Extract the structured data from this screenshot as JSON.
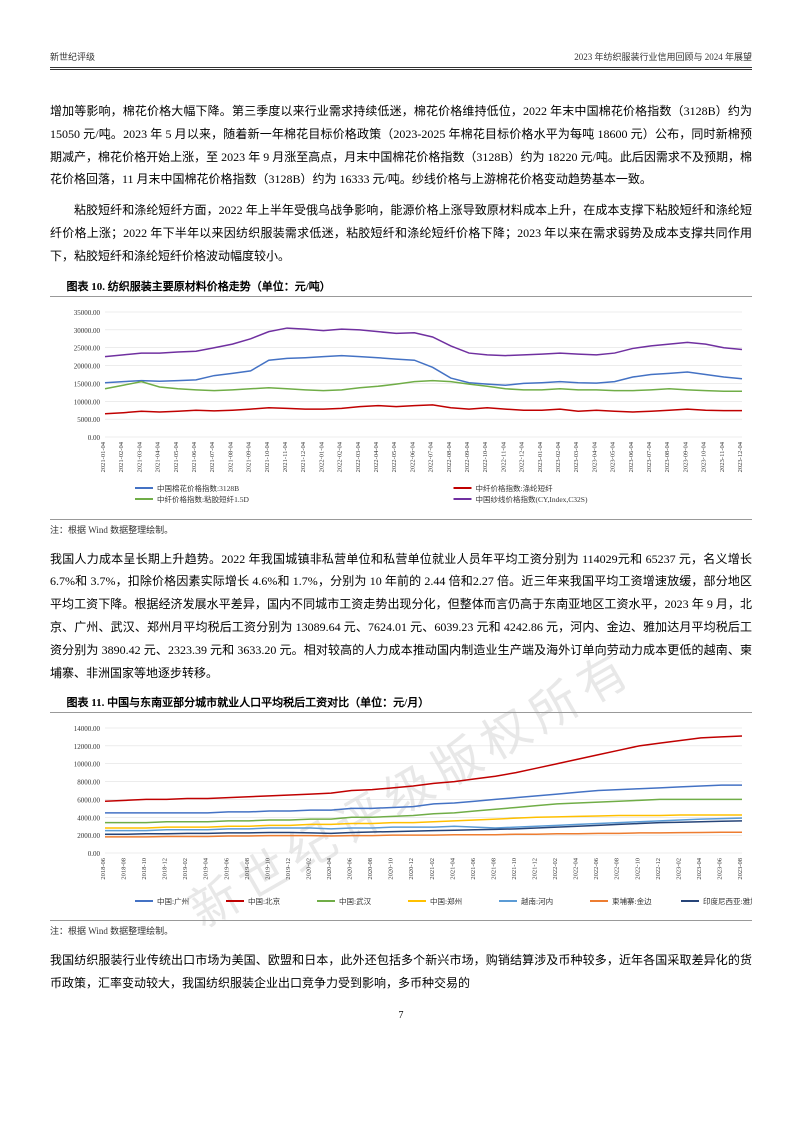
{
  "header": {
    "left": "新世纪评级",
    "right": "2023 年纺织服装行业信用回顾与 2024 年展望"
  },
  "paragraphs": {
    "p1": "增加等影响，棉花价格大幅下降。第三季度以来行业需求持续低迷，棉花价格维持低位，2022 年末中国棉花价格指数（3128B）约为 15050 元/吨。2023 年 5 月以来，随着新一年棉花目标价格政策（2023-2025 年棉花目标价格水平为每吨 18600 元）公布，同时新棉预期减产，棉花价格开始上涨，至 2023 年 9 月涨至高点，月末中国棉花价格指数（3128B）约为 18220 元/吨。此后因需求不及预期，棉花价格回落，11 月末中国棉花价格指数（3128B）约为 16333 元/吨。纱线价格与上游棉花价格变动趋势基本一致。",
    "p2": "粘胶短纤和涤纶短纤方面，2022 年上半年受俄乌战争影响，能源价格上涨导致原材料成本上升，在成本支撑下粘胶短纤和涤纶短纤价格上涨；2022 年下半年以来因纺织服装需求低迷，粘胶短纤和涤纶短纤价格下降；2023 年以来在需求弱势及成本支撑共同作用下，粘胶短纤和涤纶短纤价格波动幅度较小。",
    "p3": "我国人力成本呈长期上升趋势。2022 年我国城镇非私营单位和私营单位就业人员年平均工资分别为 114029元和 65237 元，名义增长 6.7%和 3.7%，扣除价格因素实际增长 4.6%和 1.7%，分别为 10 年前的 2.44 倍和2.27 倍。近三年来我国平均工资增速放缓，部分地区平均工资下降。根据经济发展水平差异，国内不同城市工资走势出现分化，但整体而言仍高于东南亚地区工资水平，2023 年 9 月，北京、广州、武汉、郑州月平均税后工资分别为 13089.64 元、7624.01 元、6039.23 元和 4242.86 元，河内、金边、雅加达月平均税后工资分别为 3890.42 元、2323.39 元和 3633.20 元。相对较高的人力成本推动国内制造业生产端及海外订单向劳动力成本更低的越南、柬埔寨、非洲国家等地逐步转移。",
    "p4": "我国纺织服装行业传统出口市场为美国、欧盟和日本，此外还包括多个新兴市场，购销结算涉及币种较多，近年各国采取差异化的货币政策，汇率变动较大，我国纺织服装企业出口竞争力受到影响，多币种交易的"
  },
  "chart10": {
    "title": "图表 10. 纺织服装主要原材料价格走势（单位：元/吨）",
    "note": "注：根据 Wind 数据整理绘制。",
    "ylim": [
      0,
      35000
    ],
    "ytick_step": 5000,
    "ylabels": [
      "0.00",
      "5000.00",
      "10000.00",
      "15000.00",
      "20000.00",
      "25000.00",
      "30000.00",
      "35000.00"
    ],
    "xlabels": [
      "2021-01-04",
      "2021-02-04",
      "2021-03-04",
      "2021-04-04",
      "2021-05-04",
      "2021-06-04",
      "2021-07-04",
      "2021-08-04",
      "2021-09-04",
      "2021-10-04",
      "2021-11-04",
      "2021-12-04",
      "2022-01-04",
      "2022-02-04",
      "2022-03-04",
      "2022-04-04",
      "2022-05-04",
      "2022-06-04",
      "2022-07-04",
      "2022-08-04",
      "2022-09-04",
      "2022-10-04",
      "2022-11-04",
      "2022-12-04",
      "2023-01-04",
      "2023-02-04",
      "2023-03-04",
      "2023-04-04",
      "2023-05-04",
      "2023-06-04",
      "2023-07-04",
      "2023-08-04",
      "2023-09-04",
      "2023-10-04",
      "2023-11-04",
      "2023-12-04"
    ],
    "series": {
      "cotton": {
        "label": "中国棉花价格指数:3128B",
        "color": "#4472c4",
        "values": [
          15200,
          15500,
          15800,
          15600,
          15800,
          16000,
          17200,
          17800,
          18500,
          21500,
          22000,
          22200,
          22500,
          22800,
          22500,
          22200,
          21800,
          21500,
          19500,
          16500,
          15200,
          14800,
          14500,
          15000,
          15200,
          15500,
          15200,
          15100,
          15500,
          16800,
          17500,
          17800,
          18200,
          17500,
          16800,
          16300
        ]
      },
      "polyester": {
        "label": "中纤价格指数:涤纶短纤",
        "color": "#c00000",
        "values": [
          6500,
          6800,
          7200,
          7000,
          7200,
          7500,
          7300,
          7500,
          7800,
          8200,
          8000,
          7800,
          7800,
          8000,
          8500,
          8800,
          8500,
          8800,
          9000,
          8200,
          7800,
          8200,
          7800,
          7500,
          7500,
          7800,
          7200,
          7500,
          7200,
          7000,
          7200,
          7500,
          7800,
          7500,
          7400,
          7400
        ]
      },
      "viscose": {
        "label": "中纤价格指数:粘胶短纤1.5D",
        "color": "#70ad47",
        "values": [
          13500,
          14500,
          15500,
          14000,
          13500,
          13200,
          13000,
          13200,
          13500,
          13800,
          13500,
          13200,
          13000,
          13200,
          13800,
          14200,
          14800,
          15500,
          15800,
          15500,
          14800,
          14200,
          13500,
          13200,
          13200,
          13500,
          13200,
          13200,
          13000,
          13000,
          13200,
          13500,
          13200,
          13000,
          12800,
          12800
        ]
      },
      "yarn": {
        "label": "中国纱线价格指数(CY,Index,C32S)",
        "color": "#7030a0",
        "values": [
          22500,
          23000,
          23500,
          23500,
          23800,
          24000,
          25000,
          26000,
          27500,
          29500,
          30500,
          30200,
          29800,
          30200,
          30000,
          29500,
          29000,
          29200,
          28000,
          25500,
          23500,
          23000,
          22800,
          23000,
          23200,
          23500,
          23200,
          23000,
          23500,
          24800,
          25500,
          26000,
          26500,
          26000,
          25000,
          24500
        ]
      }
    }
  },
  "chart11": {
    "title": "图表 11. 中国与东南亚部分城市就业人口平均税后工资对比（单位：元/月）",
    "note": "注：根据 Wind 数据整理绘制。",
    "ylim": [
      0,
      14000
    ],
    "ytick_step": 2000,
    "ylabels": [
      "0.00",
      "2000.00",
      "4000.00",
      "6000.00",
      "8000.00",
      "10000.00",
      "12000.00",
      "14000.00"
    ],
    "xlabels": [
      "2018-06",
      "2018-08",
      "2018-10",
      "2018-12",
      "2019-02",
      "2019-04",
      "2019-06",
      "2019-08",
      "2019-10",
      "2019-12",
      "2020-02",
      "2020-04",
      "2020-06",
      "2020-08",
      "2020-10",
      "2020-12",
      "2021-02",
      "2021-04",
      "2021-06",
      "2021-08",
      "2021-10",
      "2021-12",
      "2022-02",
      "2022-04",
      "2022-06",
      "2022-08",
      "2022-10",
      "2022-12",
      "2023-02",
      "2023-04",
      "2023-06",
      "2023-08"
    ],
    "series": {
      "guangzhou": {
        "label": "中国:广州",
        "color": "#4472c4",
        "values": [
          4500,
          4500,
          4500,
          4500,
          4500,
          4500,
          4600,
          4600,
          4700,
          4700,
          4800,
          4800,
          5000,
          5000,
          5100,
          5200,
          5500,
          5600,
          5800,
          6000,
          6200,
          6400,
          6600,
          6800,
          7000,
          7100,
          7200,
          7300,
          7400,
          7500,
          7600,
          7600
        ]
      },
      "beijing": {
        "label": "中国:北京",
        "color": "#c00000",
        "values": [
          5800,
          5900,
          6000,
          6000,
          6100,
          6100,
          6200,
          6300,
          6400,
          6500,
          6600,
          6700,
          7000,
          7100,
          7300,
          7500,
          7800,
          8000,
          8300,
          8600,
          9000,
          9500,
          10000,
          10500,
          11000,
          11500,
          12000,
          12300,
          12600,
          12900,
          13000,
          13100
        ]
      },
      "wuhan": {
        "label": "中国:武汉",
        "color": "#70ad47",
        "values": [
          3400,
          3400,
          3400,
          3500,
          3500,
          3500,
          3600,
          3600,
          3700,
          3700,
          3800,
          3800,
          4000,
          4000,
          4100,
          4200,
          4400,
          4500,
          4700,
          4900,
          5100,
          5300,
          5500,
          5600,
          5700,
          5800,
          5900,
          6000,
          6000,
          6000,
          6000,
          6000
        ]
      },
      "zhengzhou": {
        "label": "中国:郑州",
        "color": "#ffc000",
        "values": [
          2800,
          2800,
          2800,
          2900,
          2900,
          2900,
          3000,
          3000,
          3100,
          3100,
          3200,
          3200,
          3300,
          3300,
          3400,
          3400,
          3500,
          3600,
          3700,
          3800,
          3900,
          4000,
          4050,
          4100,
          4150,
          4200,
          4200,
          4200,
          4250,
          4250,
          4250,
          4250
        ]
      },
      "hanoi": {
        "label": "越南:河内",
        "color": "#5b9bd5",
        "values": [
          2500,
          2500,
          2500,
          2600,
          2600,
          2600,
          2700,
          2700,
          2800,
          2800,
          2800,
          2700,
          2800,
          2800,
          2900,
          2900,
          2900,
          3000,
          2900,
          2800,
          2900,
          3000,
          3100,
          3200,
          3300,
          3400,
          3500,
          3600,
          3700,
          3800,
          3850,
          3900
        ]
      },
      "phnompenh": {
        "label": "柬埔寨:金边",
        "color": "#ed7d31",
        "values": [
          1800,
          1800,
          1800,
          1850,
          1850,
          1850,
          1900,
          1900,
          1950,
          1950,
          1950,
          1900,
          1950,
          1950,
          2000,
          2000,
          2000,
          2050,
          2050,
          2050,
          2100,
          2100,
          2150,
          2150,
          2200,
          2200,
          2250,
          2250,
          2280,
          2300,
          2320,
          2320
        ]
      },
      "jakarta": {
        "label": "印度尼西亚:雅加达",
        "color": "#264478",
        "values": [
          2100,
          2100,
          2150,
          2150,
          2200,
          2200,
          2250,
          2250,
          2300,
          2300,
          2250,
          2200,
          2300,
          2350,
          2400,
          2450,
          2500,
          2550,
          2600,
          2650,
          2700,
          2800,
          2900,
          3000,
          3100,
          3200,
          3300,
          3400,
          3450,
          3500,
          3550,
          3600
        ]
      }
    }
  },
  "watermark": "新世纪评级版权所有",
  "page_number": "7"
}
